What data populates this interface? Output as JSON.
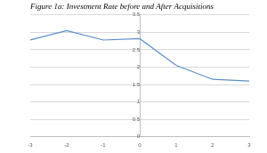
{
  "chart_data": {
    "type": "line",
    "title": "Figure 1a: Investment Rate before and After Acquisitions",
    "x": [
      -3,
      -2,
      -1,
      0,
      1,
      2,
      3
    ],
    "values": [
      2.78,
      3.05,
      2.78,
      2.82,
      2.05,
      1.65,
      1.6
    ],
    "color": "#5b8fc7",
    "xlim": [
      -3,
      3
    ],
    "xticks": [
      -3,
      -2,
      -1,
      0,
      1,
      2,
      3
    ],
    "ylim": [
      0,
      3.5
    ],
    "yticks": [
      0,
      0.5,
      1,
      1.5,
      2,
      2.5,
      3,
      3.5
    ],
    "grid": true
  }
}
